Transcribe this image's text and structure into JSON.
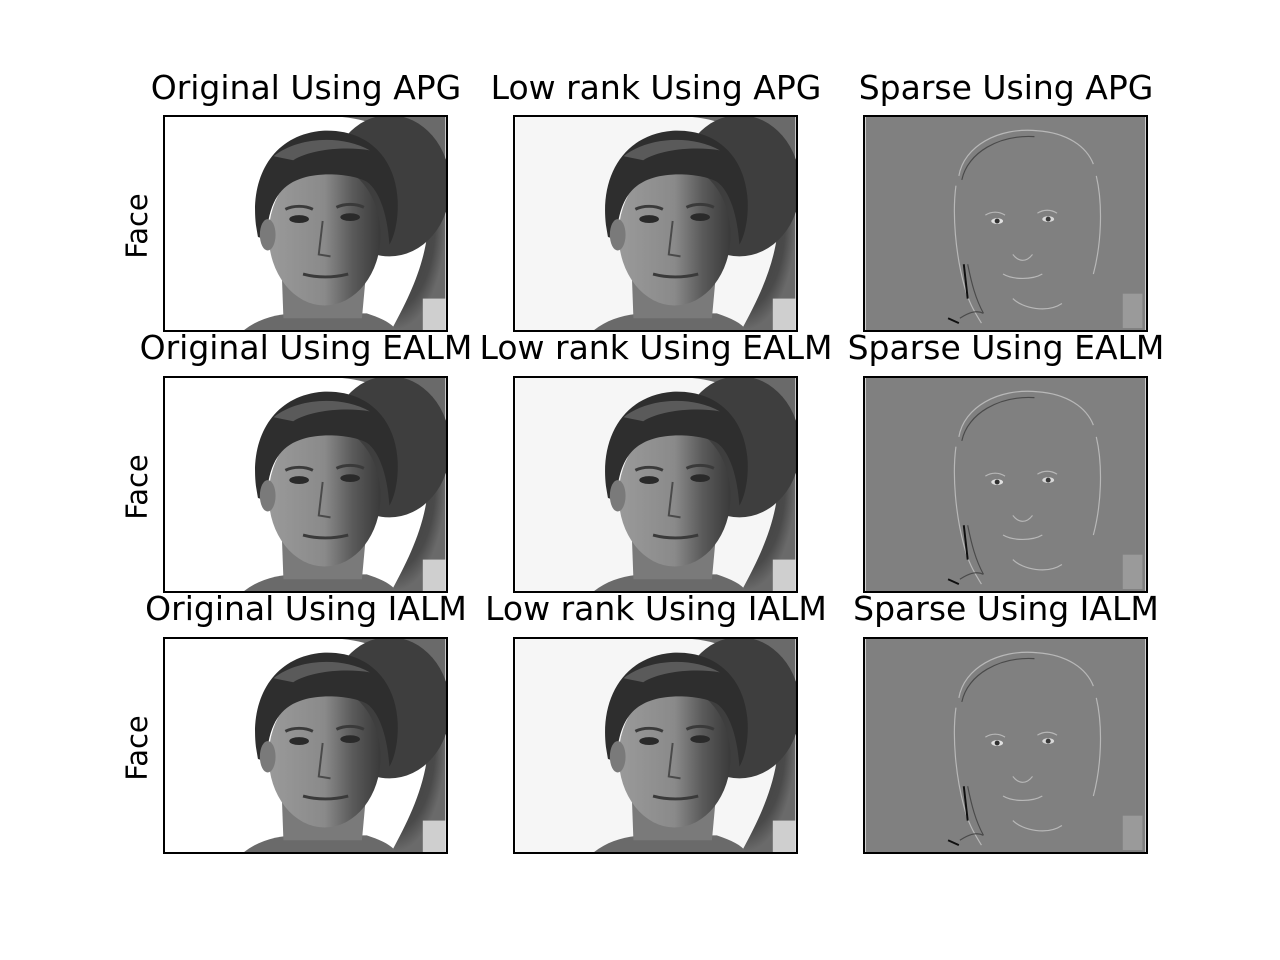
{
  "figure": {
    "row_labels": [
      "Face",
      "Face",
      "Face"
    ],
    "panels": [
      {
        "title": "Original Using APG",
        "kind": "original"
      },
      {
        "title": "Low rank Using APG",
        "kind": "lowrank"
      },
      {
        "title": "Sparse Using APG",
        "kind": "sparse"
      },
      {
        "title": "Original Using EALM",
        "kind": "original"
      },
      {
        "title": "Low rank Using EALM",
        "kind": "lowrank"
      },
      {
        "title": "Sparse Using EALM",
        "kind": "sparse"
      },
      {
        "title": "Original Using IALM",
        "kind": "original"
      },
      {
        "title": "Low rank Using IALM",
        "kind": "lowrank"
      },
      {
        "title": "Sparse Using IALM",
        "kind": "sparse"
      }
    ]
  },
  "colors": {
    "background": "#ffffff",
    "frame": "#000000",
    "sparse_gray": "#808080"
  }
}
